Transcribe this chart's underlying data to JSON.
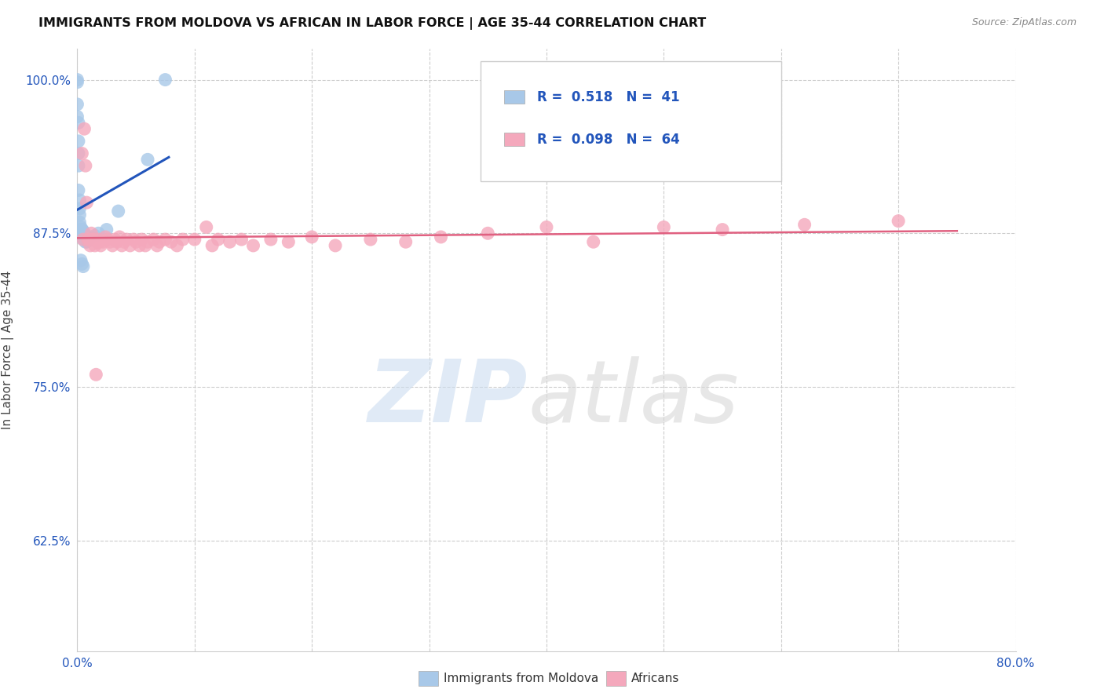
{
  "title": "IMMIGRANTS FROM MOLDOVA VS AFRICAN IN LABOR FORCE | AGE 35-44 CORRELATION CHART",
  "source": "Source: ZipAtlas.com",
  "ylabel": "In Labor Force | Age 35-44",
  "x_min": 0.0,
  "x_max": 0.8,
  "y_min": 0.535,
  "y_max": 1.025,
  "x_ticks": [
    0.0,
    0.1,
    0.2,
    0.3,
    0.4,
    0.5,
    0.6,
    0.7,
    0.8
  ],
  "x_tick_labels": [
    "0.0%",
    "",
    "",
    "",
    "",
    "",
    "",
    "",
    "80.0%"
  ],
  "y_ticks": [
    0.625,
    0.75,
    0.875,
    1.0
  ],
  "y_tick_labels": [
    "62.5%",
    "75.0%",
    "87.5%",
    "100.0%"
  ],
  "legend_R1": "0.518",
  "legend_N1": "41",
  "legend_R2": "0.098",
  "legend_N2": "64",
  "legend_label1": "Immigrants from Moldova",
  "legend_label2": "Africans",
  "moldova_color": "#a8c8e8",
  "african_color": "#f4a8bc",
  "moldova_line_color": "#2255bb",
  "african_line_color": "#e06080",
  "background_color": "#ffffff",
  "moldova_x": [
    0.0,
    0.0,
    0.0,
    0.0,
    0.0,
    0.0,
    0.001,
    0.001,
    0.001,
    0.001,
    0.001,
    0.002,
    0.002,
    0.002,
    0.002,
    0.002,
    0.003,
    0.003,
    0.003,
    0.003,
    0.004,
    0.004,
    0.004,
    0.005,
    0.005,
    0.005,
    0.006,
    0.006,
    0.007,
    0.007,
    0.008,
    0.01,
    0.01,
    0.015,
    0.018,
    0.02,
    0.025,
    0.035,
    0.055,
    0.065,
    0.075
  ],
  "moldova_y": [
    0.99,
    0.998,
    1.0,
    1.0,
    0.87,
    0.84,
    0.97,
    0.96,
    0.95,
    0.94,
    0.87,
    0.92,
    0.9,
    0.885,
    0.878,
    0.873,
    0.878,
    0.875,
    0.872,
    0.868,
    0.875,
    0.87,
    0.865,
    0.873,
    0.87,
    0.865,
    0.87,
    0.863,
    0.87,
    0.865,
    0.868,
    0.87,
    0.867,
    0.87,
    0.873,
    0.875,
    0.878,
    0.893,
    0.955,
    0.978,
    1.0
  ],
  "african_x": [
    0.005,
    0.006,
    0.008,
    0.009,
    0.01,
    0.012,
    0.013,
    0.015,
    0.016,
    0.018,
    0.019,
    0.02,
    0.022,
    0.023,
    0.025,
    0.027,
    0.028,
    0.03,
    0.032,
    0.033,
    0.035,
    0.037,
    0.038,
    0.04,
    0.042,
    0.045,
    0.047,
    0.05,
    0.052,
    0.055,
    0.058,
    0.06,
    0.065,
    0.07,
    0.075,
    0.08,
    0.085,
    0.09,
    0.095,
    0.1,
    0.11,
    0.115,
    0.12,
    0.135,
    0.15,
    0.165,
    0.18,
    0.21,
    0.23,
    0.25,
    0.27,
    0.29,
    0.31,
    0.35,
    0.395,
    0.415,
    0.44,
    0.47,
    0.51,
    0.54,
    0.56,
    0.59,
    0.64,
    0.7
  ],
  "african_y": [
    0.865,
    0.87,
    0.875,
    0.86,
    0.875,
    0.868,
    0.87,
    0.865,
    0.87,
    0.868,
    0.87,
    0.865,
    0.875,
    0.868,
    0.87,
    0.872,
    0.868,
    0.87,
    0.865,
    0.868,
    0.862,
    0.868,
    0.87,
    0.865,
    0.868,
    0.862,
    0.87,
    0.865,
    0.868,
    0.87,
    0.862,
    0.868,
    0.87,
    0.865,
    0.862,
    0.868,
    0.865,
    0.87,
    0.868,
    0.87,
    0.875,
    0.865,
    0.868,
    0.87,
    0.865,
    0.868,
    0.87,
    0.875,
    0.868,
    0.87,
    0.865,
    0.868,
    0.87,
    0.875,
    0.868,
    0.87,
    0.865,
    0.868,
    0.87,
    0.875,
    0.878,
    0.87,
    0.875,
    0.88
  ]
}
